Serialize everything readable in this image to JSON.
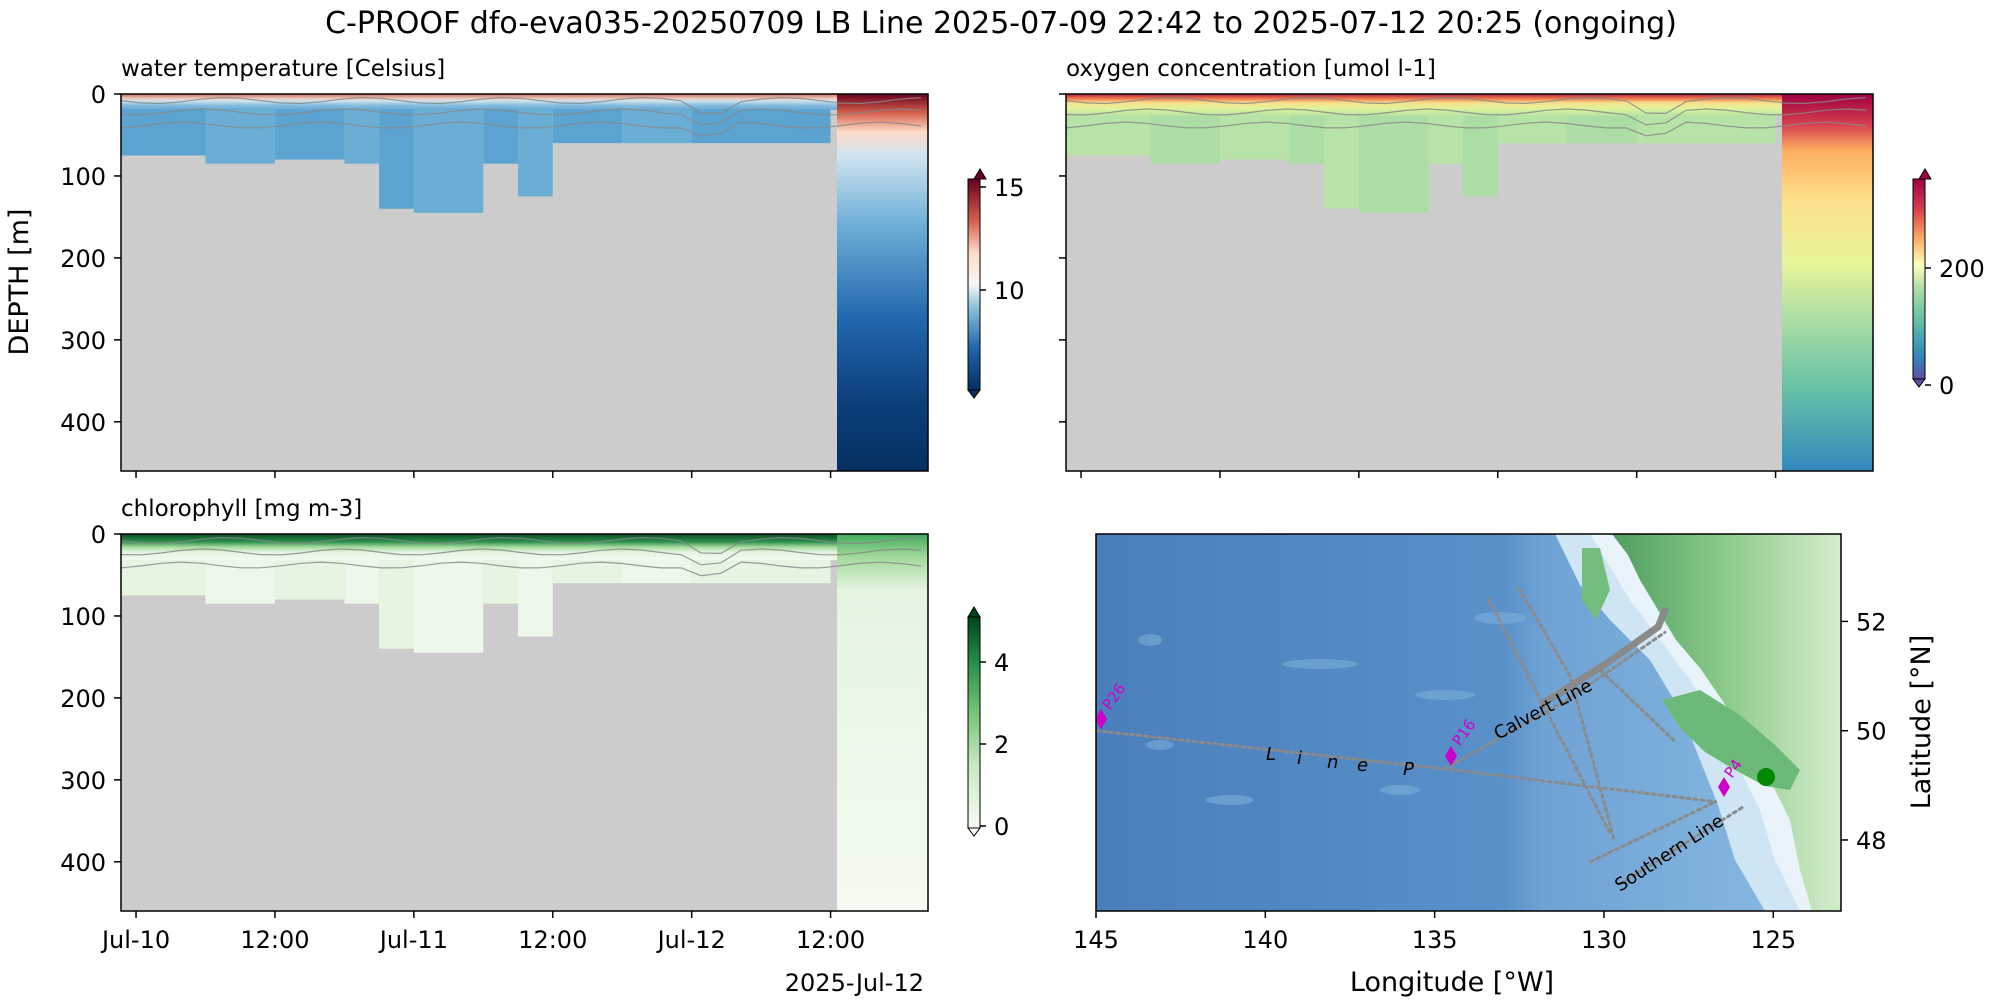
{
  "figure": {
    "title": "C-PROOF dfo-eva035-20250709   LB Line   2025-07-09 22:42 to 2025-07-12 20:25 (ongoing)"
  },
  "panels": {
    "temperature": {
      "title": "water temperature [Celsius]",
      "ylabel": "DEPTH [m]",
      "yticks": [
        "0",
        "100",
        "200",
        "300",
        "400"
      ],
      "colorbar": {
        "ticks": [
          "10",
          "15"
        ],
        "range": [
          5.5,
          15.5
        ],
        "cmap": "RdBu_r"
      }
    },
    "oxygen": {
      "title": "oxygen concentration [umol l-1]",
      "colorbar": {
        "ticks": [
          "0",
          "200"
        ],
        "range": [
          0,
          350
        ],
        "cmap": "Spectral_r"
      }
    },
    "chlorophyll": {
      "title": "chlorophyll [mg m-3]",
      "yticks": [
        "0",
        "100",
        "200",
        "300",
        "400"
      ],
      "xticks": [
        "Jul-10",
        "12:00",
        "Jul-11",
        "12:00",
        "Jul-12",
        "12:00"
      ],
      "xoffset_label": "2025-Jul-12",
      "colorbar": {
        "ticks": [
          "0",
          "2",
          "4"
        ],
        "range": [
          0,
          5
        ],
        "cmap": "Greens"
      }
    },
    "map": {
      "xlabel": "Longitude [°W]",
      "ylabel": "Latitude [°N]",
      "xticks": [
        "145",
        "140",
        "135",
        "130",
        "125"
      ],
      "yticks": [
        "52",
        "50",
        "48"
      ],
      "labels": {
        "calvert": "Calvert Line",
        "southern": "Southern Line",
        "linep": [
          "L",
          "i",
          "n",
          "e",
          "P"
        ],
        "stations": [
          "P26",
          "P16",
          "P4"
        ]
      },
      "colors": {
        "station": "#cc00cc",
        "glider": "#008800",
        "track": "#888888",
        "ocean": "#4f86c0",
        "land": "#5aa86a"
      }
    }
  },
  "chart_data": [
    {
      "type": "heatmap",
      "title": "water temperature [Celsius]",
      "ylabel": "DEPTH [m]",
      "ylim": [
        460,
        0
      ],
      "xlim": [
        "2025-07-09 22:42",
        "2025-07-12 20:25"
      ],
      "colorbar_range": [
        5.5,
        15.5
      ],
      "max_depth_profile": {
        "time": [
          "2025-07-10 00:00",
          "2025-07-10 06:00",
          "2025-07-10 12:00",
          "2025-07-10 18:00",
          "2025-07-10 21:00",
          "2025-07-11 00:00",
          "2025-07-11 06:00",
          "2025-07-11 09:00",
          "2025-07-11 12:00",
          "2025-07-11 18:00",
          "2025-07-12 00:00",
          "2025-07-12 12:00"
        ],
        "depth": [
          75,
          85,
          80,
          85,
          140,
          145,
          85,
          125,
          60,
          60,
          60,
          460
        ]
      }
    },
    {
      "type": "heatmap",
      "title": "oxygen concentration [umol l-1]",
      "ylim": [
        460,
        0
      ],
      "colorbar_range": [
        0,
        350
      ]
    },
    {
      "type": "heatmap",
      "title": "chlorophyll [mg m-3]",
      "ylim": [
        460,
        0
      ],
      "colorbar_range": [
        0,
        5
      ]
    },
    {
      "type": "scatter",
      "xlabel": "Longitude [°W]",
      "ylabel": "Latitude [°N]",
      "xlim": [
        145,
        123
      ],
      "ylim": [
        46.7,
        53.6
      ],
      "stations": [
        {
          "name": "P26",
          "lon": 145,
          "lat": 50
        },
        {
          "name": "P16",
          "lon": 134.7,
          "lat": 49.3
        },
        {
          "name": "P4",
          "lon": 126.7,
          "lat": 48.7
        }
      ],
      "glider_position": {
        "lon": 125.2,
        "lat": 48.9
      }
    }
  ]
}
